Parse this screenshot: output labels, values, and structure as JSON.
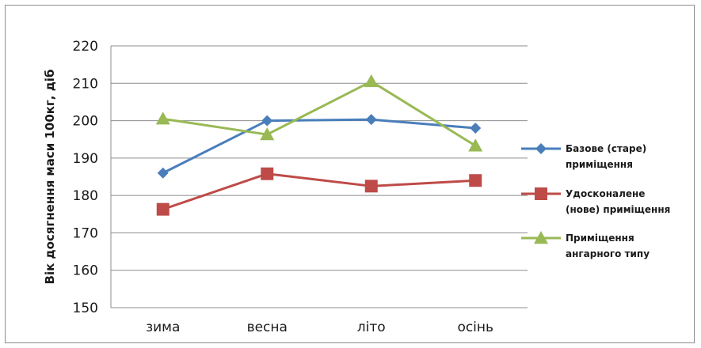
{
  "chart_data": {
    "type": "line",
    "categories": [
      "зима",
      "весна",
      "літо",
      "осінь"
    ],
    "ylabel": "Вік досягнення маси 100кг, діб",
    "ylim": [
      150,
      220
    ],
    "yticks": [
      150,
      160,
      170,
      180,
      190,
      200,
      210,
      220
    ],
    "grid": true,
    "legend_position": "right",
    "series": [
      {
        "name_lines": [
          "Базове (старе)",
          "приміщення"
        ],
        "color": "#4a7ebb",
        "marker": "diamond",
        "values": [
          186,
          200,
          200.3,
          198
        ]
      },
      {
        "name_lines": [
          "Удосконалене",
          "(нове) приміщення"
        ],
        "color": "#be4b48",
        "marker": "square",
        "values": [
          176.3,
          185.8,
          182.5,
          184
        ]
      },
      {
        "name_lines": [
          "Приміщення",
          "ангарного типу"
        ],
        "color": "#98b954",
        "marker": "triangle",
        "values": [
          200.5,
          196.3,
          210.5,
          193.3
        ]
      }
    ]
  }
}
